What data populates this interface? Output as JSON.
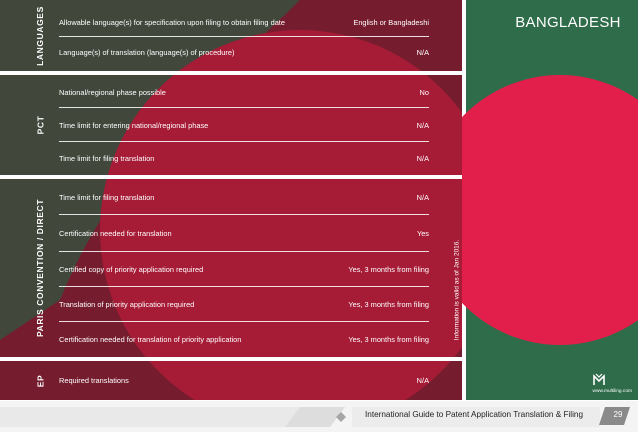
{
  "country": "BANGLADESH",
  "sections": [
    {
      "label": "LANGUAGES",
      "rows": [
        {
          "question": "Allowable language(s) for specification upon filing to obtain filing date",
          "answer": "English or Bangladeshi"
        },
        {
          "question": "Language(s) of translation (language(s) of procedure)",
          "answer": "N/A"
        }
      ]
    },
    {
      "label": "PCT",
      "rows": [
        {
          "question": "National/regional phase possible",
          "answer": "No"
        },
        {
          "question": "Time limit for entering national/regional phase",
          "answer": "N/A"
        },
        {
          "question": "Time limit for filing translation",
          "answer": "N/A"
        }
      ]
    },
    {
      "label": "PARIS CONVENTION / DIRECT",
      "rows": [
        {
          "question": "Time limit for filing translation",
          "answer": "N/A"
        },
        {
          "question": "Certification needed for translation",
          "answer": "Yes"
        },
        {
          "question": "Certified copy of priority application required",
          "answer": "Yes, 3 months from filing"
        },
        {
          "question": "Translation of priority application required",
          "answer": "Yes, 3 months from filing"
        },
        {
          "question": "Certification needed for translation of priority application",
          "answer": "Yes, 3 months from filing"
        }
      ]
    },
    {
      "label": "EP",
      "rows": [
        {
          "question": "Required translations",
          "answer": "N/A"
        }
      ]
    }
  ],
  "validity_note": "Information is valid as of Jan 2016.",
  "website": "www.multiling.com",
  "footer": {
    "title": "International Guide to Patent Application Translation & Filing",
    "page_number": "29"
  },
  "colors": {
    "dark_red": "#7a1f30",
    "bright_red": "#d7203f",
    "flag_green": "#2e6c4a",
    "flag_red": "#e21f4b",
    "dark_green": "#1e4d38"
  }
}
